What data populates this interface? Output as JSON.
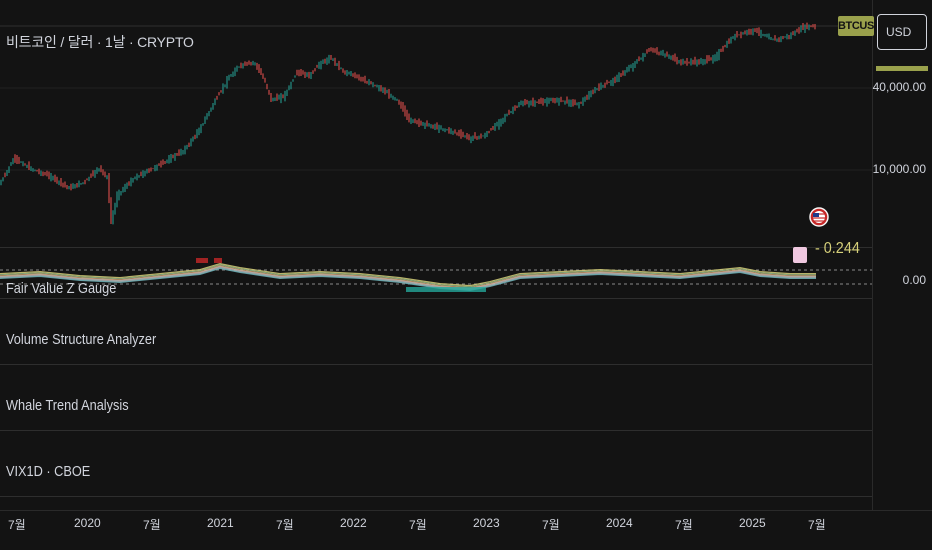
{
  "chart": {
    "title": "비트코인 / 달러 · 1날 · CRYPTO",
    "symbol_badge": "BTCUSD",
    "currency_button": "USD"
  },
  "price_scale": {
    "labels": [
      "40,000.00",
      "10,000.00",
      "0.00"
    ]
  },
  "indicators": [
    {
      "label": "Fair Value Z Gauge"
    },
    {
      "label": "Volume Structure Analyzer"
    },
    {
      "label": "Whale Trend Analysis"
    },
    {
      "label": "VIX1D · CBOE"
    }
  ],
  "gauge": {
    "value_text": "- 0.244"
  },
  "time_axis": {
    "ticks": [
      "7월",
      "2020",
      "7월",
      "2021",
      "7월",
      "2022",
      "7월",
      "2023",
      "7월",
      "2024",
      "7월",
      "2025",
      "7월"
    ]
  },
  "colors": {
    "up": "#26a69a",
    "down": "#ef5350",
    "accent": "#9aa14c",
    "background": "#131313"
  },
  "icons": {
    "flag": "us-flag-icon"
  }
}
